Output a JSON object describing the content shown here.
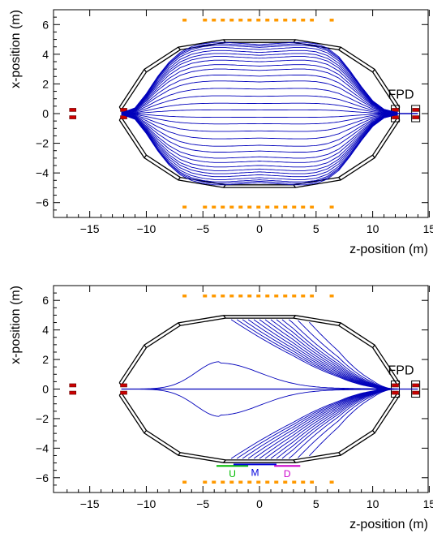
{
  "chart_data": [
    {
      "type": "line",
      "panel": "top",
      "xlabel": "z-position (m)",
      "ylabel": "x-position (m)",
      "xlim": [
        -18.2,
        14.9
      ],
      "ylim": [
        -7.0,
        7.0
      ],
      "xticks": [
        -15,
        -10,
        -5,
        0,
        5,
        10,
        15
      ],
      "yticks": [
        -6,
        -4,
        -2,
        0,
        2,
        4,
        6
      ],
      "x_tick_labels": [
        "−15",
        "−10",
        "−5",
        "0",
        "5",
        "10",
        "15"
      ],
      "y_tick_labels": [
        "−6",
        "−4",
        "−2",
        "0",
        "2",
        "4",
        "6"
      ],
      "annotations": [
        {
          "text": "FPD",
          "x": 12.5,
          "y": 1.0
        }
      ],
      "tank_outline": {
        "z": [
          -12.2,
          -10.0,
          -7.0,
          -3.0,
          3.0,
          7.0,
          10.0,
          12.2
        ],
        "x": [
          0.25,
          2.8,
          4.3,
          4.8,
          4.8,
          4.3,
          2.8,
          0.25
        ]
      },
      "orange_segments": [
        {
          "y": 6.3,
          "z_from": -6.8,
          "z_to": -6.3
        },
        {
          "y": 6.3,
          "z_from": -5.0,
          "z_to": 4.8
        },
        {
          "y": 6.3,
          "z_from": 6.2,
          "z_to": 6.9
        },
        {
          "y": -6.3,
          "z_from": -6.8,
          "z_to": -6.3
        },
        {
          "y": -6.3,
          "z_from": -5.0,
          "z_to": 4.8
        },
        {
          "y": -6.3,
          "z_from": 6.2,
          "z_to": 6.9
        }
      ],
      "red_markers": [
        {
          "z": -16.5,
          "x": 0.25
        },
        {
          "z": -16.5,
          "x": -0.25
        },
        {
          "z": -12.0,
          "x": 0.25
        },
        {
          "z": -12.0,
          "x": -0.25
        },
        {
          "z": 12.0,
          "x": 0.25
        },
        {
          "z": 12.0,
          "x": -0.25
        },
        {
          "z": 13.8,
          "x": 0.25
        },
        {
          "z": 13.8,
          "x": -0.25
        }
      ],
      "series": [
        {
          "values": [
            0.25,
            0.7,
            1.2,
            1.7,
            2.2,
            2.6,
            3.0,
            3.3,
            3.6,
            3.85,
            4.05,
            4.25,
            4.45,
            4.6,
            4.7,
            4.8
          ]
        }
      ],
      "field_line_profile": {
        "z": [
          -12,
          -11,
          -10,
          -9,
          -8,
          -7,
          -6,
          -5,
          -4,
          -3,
          -2,
          -1,
          0,
          1,
          2,
          3,
          4,
          5,
          6,
          7,
          8,
          9,
          10,
          11,
          12
        ],
        "shape": [
          0.02,
          0.08,
          0.28,
          0.52,
          0.72,
          0.86,
          0.94,
          0.98,
          1.0,
          1.0,
          0.99,
          0.98,
          0.97,
          0.98,
          0.99,
          1.0,
          1.0,
          0.98,
          0.92,
          0.8,
          0.6,
          0.38,
          0.18,
          0.06,
          0.02
        ]
      }
    },
    {
      "type": "line",
      "panel": "bottom",
      "xlabel": "z-position (m)",
      "ylabel": "x-position (m)",
      "xlim": [
        -18.2,
        14.9
      ],
      "ylim": [
        -7.0,
        7.0
      ],
      "xticks": [
        -15,
        -10,
        -5,
        0,
        5,
        10,
        15
      ],
      "yticks": [
        -6,
        -4,
        -2,
        0,
        2,
        4,
        6
      ],
      "x_tick_labels": [
        "−15",
        "−10",
        "−5",
        "0",
        "5",
        "10",
        "15"
      ],
      "y_tick_labels": [
        "−6",
        "−4",
        "−2",
        "0",
        "2",
        "4",
        "6"
      ],
      "annotations": [
        {
          "text": "FPD",
          "x": 12.5,
          "y": 1.0
        }
      ],
      "detector_segments": [
        {
          "label": "U",
          "color": "#00bb00",
          "z_from": -3.8,
          "z_to": -1.0,
          "y": -5.2
        },
        {
          "label": "M",
          "color": "#0000dd",
          "z_from": -2.3,
          "z_to": 1.5,
          "y": -5.1
        },
        {
          "label": "D",
          "color": "#cc00cc",
          "z_from": 1.3,
          "z_to": 3.6,
          "y": -5.2
        }
      ],
      "field_line_end_z": [
        -2.5,
        -2.0,
        -1.5,
        -1.0,
        -0.5,
        0.0,
        0.5,
        1.0,
        1.5,
        2.0,
        2.6,
        3.4,
        4.4
      ],
      "loop_peak": {
        "z": -3.5,
        "x": 1.85
      }
    }
  ]
}
